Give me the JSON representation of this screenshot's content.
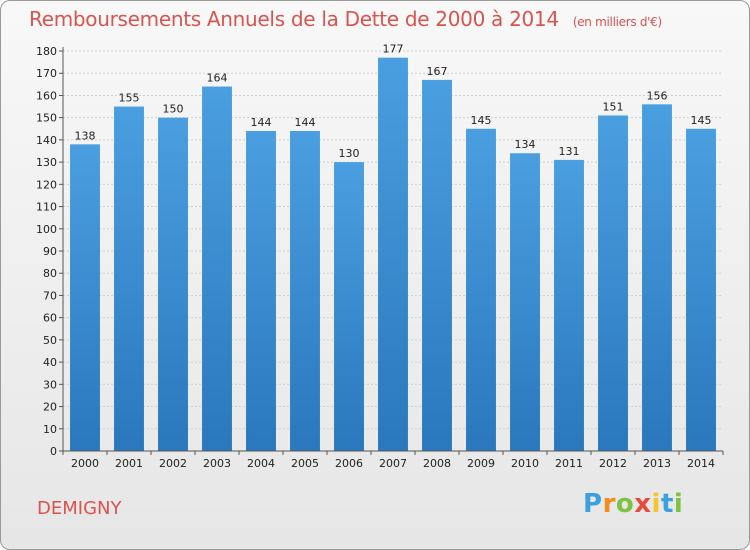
{
  "chart_data": {
    "type": "bar",
    "title": "Remboursements Annuels de la Dette de 2000 à 2014",
    "subtitle": "(en milliers d'€)",
    "xlabel": "",
    "ylabel": "",
    "categories": [
      "2000",
      "2001",
      "2002",
      "2003",
      "2004",
      "2005",
      "2006",
      "2007",
      "2008",
      "2009",
      "2010",
      "2011",
      "2012",
      "2013",
      "2014"
    ],
    "values": [
      138,
      155,
      150,
      164,
      144,
      144,
      130,
      177,
      167,
      145,
      134,
      131,
      151,
      156,
      145
    ],
    "ylim": [
      0,
      180
    ],
    "yticks": [
      0,
      10,
      20,
      30,
      40,
      50,
      60,
      70,
      80,
      90,
      100,
      110,
      120,
      130,
      140,
      150,
      160,
      170,
      180
    ],
    "grid": true,
    "bar_color": "#4a9fe0",
    "bar_color_dark": "#2a77be"
  },
  "location": "DEMIGNY",
  "brand": {
    "letters": [
      "P",
      "r",
      "o",
      "x",
      "i",
      "t",
      "i"
    ],
    "colors": [
      "#3aa0e0",
      "#f28c1b",
      "#7dc242",
      "#e84a3c",
      "#f7c52b",
      "#3aa0e0",
      "#7dc242"
    ]
  }
}
